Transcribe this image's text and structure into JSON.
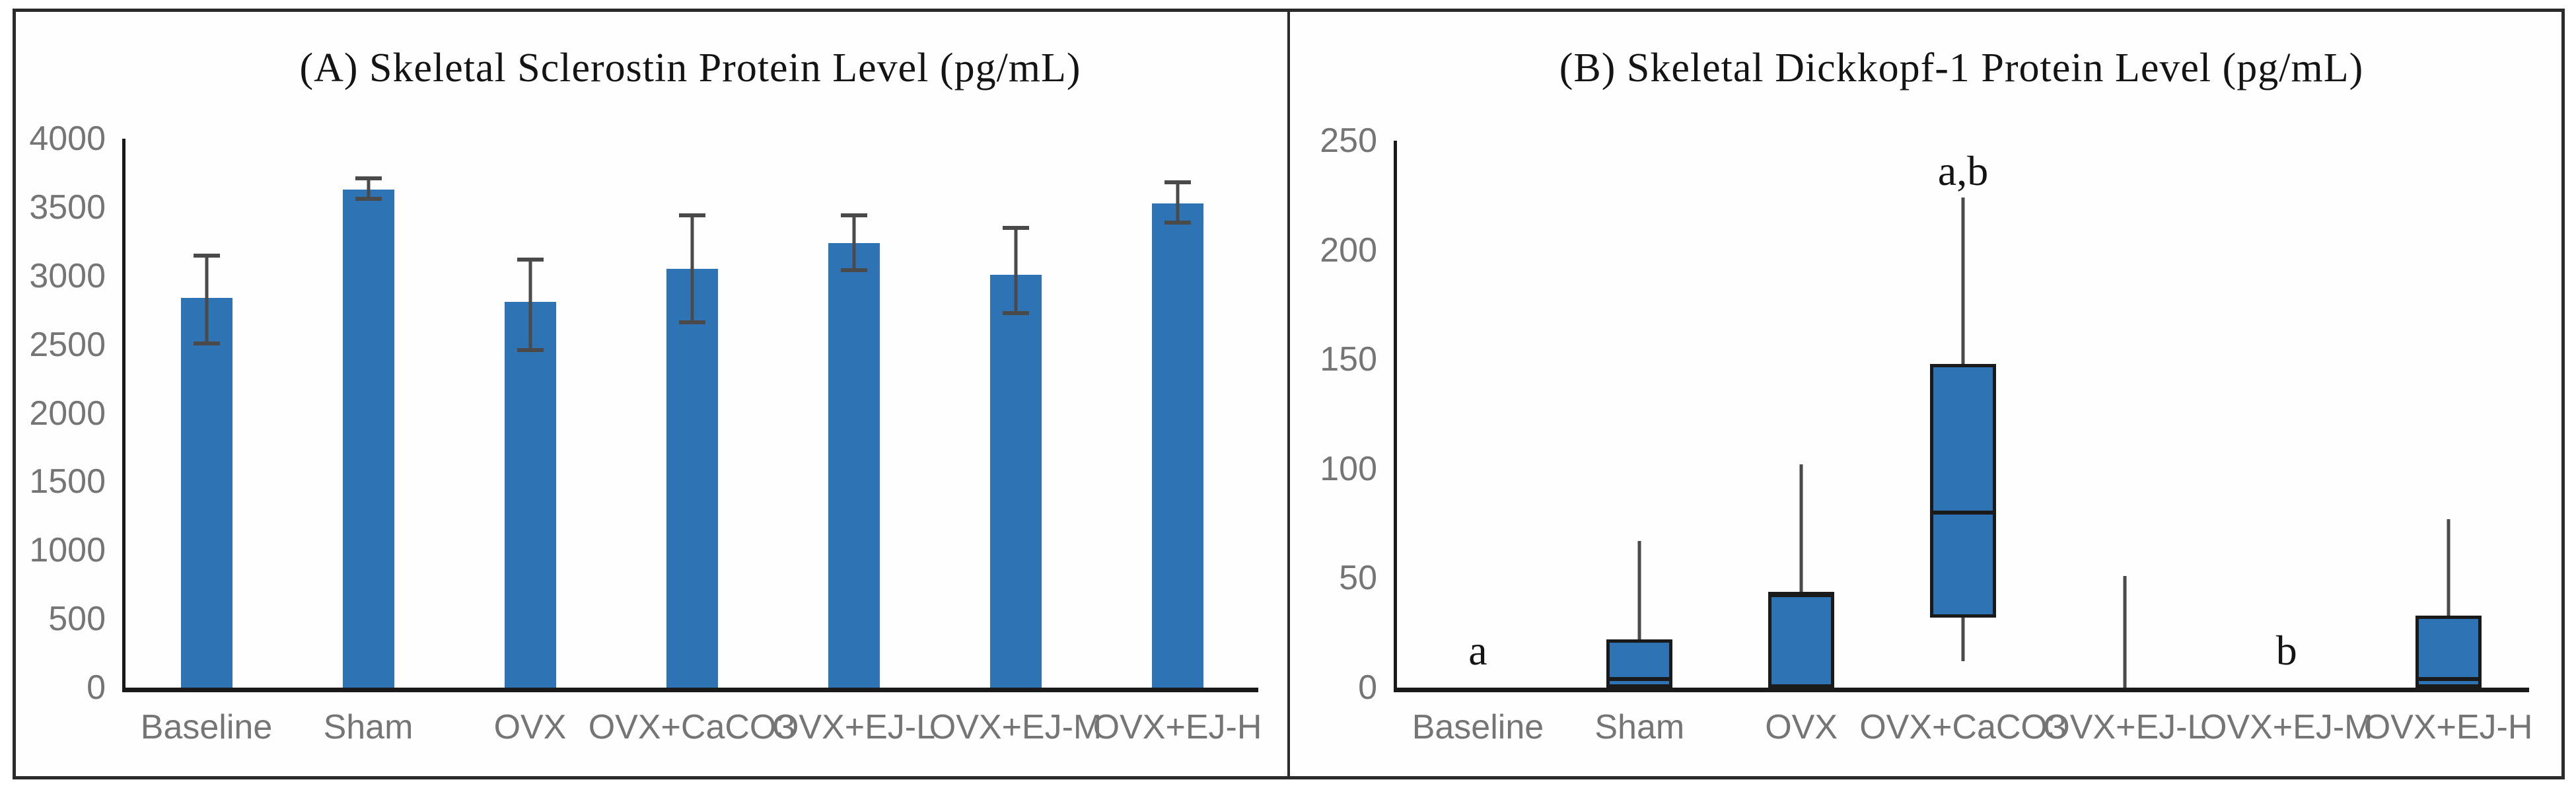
{
  "figure": {
    "panels": [
      {
        "id": "A",
        "title": "(A) Skeletal Sclerostin Protein Level (pg/mL)"
      },
      {
        "id": "B",
        "title": "(B) Skeletal Dickkopf-1 Protein Level (pg/mL)"
      }
    ]
  },
  "chart_data": [
    {
      "type": "bar",
      "panel": "A",
      "title": "(A) Skeletal Sclerostin Protein Level (pg/mL)",
      "categories": [
        "Baseline",
        "Sham",
        "OVX",
        "OVX+CaCO3",
        "OVX+EJ-L",
        "OVX+EJ-M",
        "OVX+EJ-H"
      ],
      "values": [
        2840,
        3630,
        2810,
        3050,
        3240,
        3010,
        3530
      ],
      "error_low": [
        2510,
        3560,
        2460,
        2660,
        3040,
        2730,
        3390
      ],
      "error_high": [
        3150,
        3710,
        3120,
        3440,
        3440,
        3350,
        3680
      ],
      "xlabel": "",
      "ylabel": "",
      "ylim": [
        0,
        4000
      ],
      "yticks": [
        0,
        500,
        1000,
        1500,
        2000,
        2500,
        3000,
        3500,
        4000
      ],
      "grid": false,
      "legend": null,
      "bar_color": "#2e74b4",
      "error_color": "#4a4a4a",
      "axis_color": "#1a1a1a",
      "tick_label_color": "#757575"
    },
    {
      "type": "box",
      "panel": "B",
      "title": "(B) Skeletal Dickkopf-1 Protein Level (pg/mL)",
      "categories": [
        "Baseline",
        "Sham",
        "OVX",
        "OVX+CaCO3",
        "OVX+EJ-L",
        "OVX+EJ-M",
        "OVX+EJ-H"
      ],
      "boxes": [
        {
          "category": "Baseline",
          "min": 0,
          "q1": 0,
          "median": 0,
          "q3": 0,
          "max": 0,
          "annotation": "a",
          "annotation_y": 17
        },
        {
          "category": "Sham",
          "min": 0,
          "q1": 0,
          "median": 4,
          "q3": 22,
          "max": 67,
          "annotation": "",
          "annotation_y": null
        },
        {
          "category": "OVX",
          "min": 0,
          "q1": 0,
          "median": 43,
          "q3": 43,
          "max": 102,
          "annotation": "",
          "annotation_y": null
        },
        {
          "category": "OVX+CaCO3",
          "min": 12,
          "q1": 32,
          "median": 80,
          "q3": 148,
          "max": 224,
          "annotation": "a,b",
          "annotation_y": 236
        },
        {
          "category": "OVX+EJ-L",
          "min": 0,
          "q1": 0,
          "median": 0,
          "q3": 0,
          "max": 51,
          "annotation": "",
          "annotation_y": null
        },
        {
          "category": "OVX+EJ-M",
          "min": 0,
          "q1": 0,
          "median": 0,
          "q3": 0,
          "max": 0,
          "annotation": "b",
          "annotation_y": 17
        },
        {
          "category": "OVX+EJ-H",
          "min": 0,
          "q1": 0,
          "median": 4,
          "q3": 33,
          "max": 77,
          "annotation": "",
          "annotation_y": null
        }
      ],
      "xlabel": "",
      "ylabel": "",
      "ylim": [
        0,
        250
      ],
      "yticks": [
        0,
        50,
        100,
        150,
        200,
        250
      ],
      "grid": false,
      "legend": null,
      "box_color": "#2e74b4",
      "box_border_color": "#1a1a1a",
      "median_color": "#1a1a1a",
      "whisker_color": "#4a4a4a",
      "axis_color": "#1a1a1a",
      "tick_label_color": "#757575"
    }
  ]
}
